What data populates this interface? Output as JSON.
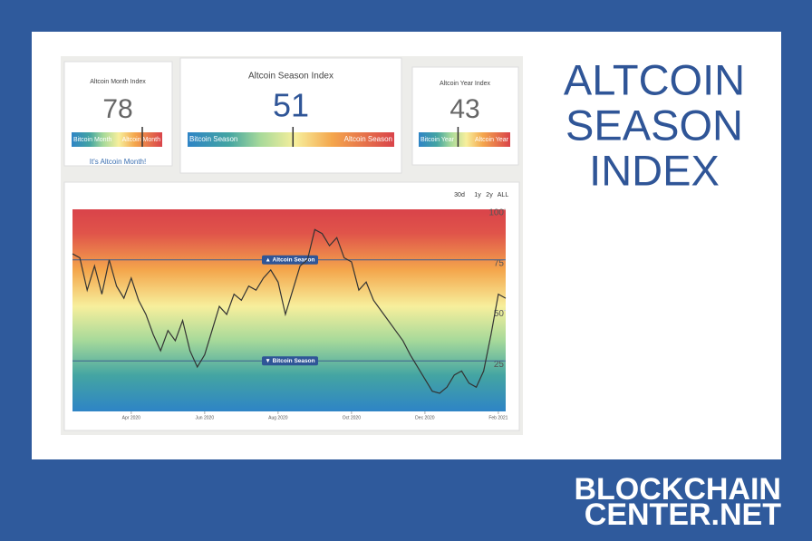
{
  "headline": [
    "ALTCOIN",
    "SEASON",
    "INDEX"
  ],
  "brand": [
    "BLOCKCHAIN",
    "CENTER.NET"
  ],
  "cards": [
    {
      "title": "Altcoin Month Index",
      "value": 78,
      "left": "Bitcoin Month",
      "right": "Altcoin Month",
      "footer": "It's Altcoin Month!"
    },
    {
      "title": "Altcoin Season Index",
      "value": 51,
      "left": "Bitcoin Season",
      "right": "Altcoin Season"
    },
    {
      "title": "Altcoin Year Index",
      "value": 43,
      "left": "Bitcoin Year",
      "right": "Altcoin Year"
    }
  ],
  "range_buttons": [
    "30d",
    "1y",
    "2y",
    "ALL"
  ],
  "chart_data": {
    "type": "line",
    "color": "#333333",
    "values": [
      78,
      76,
      60,
      72,
      58,
      75,
      62,
      56,
      66,
      55,
      48,
      38,
      30,
      40,
      35,
      45,
      30,
      22,
      28,
      40,
      52,
      48,
      58,
      55,
      62,
      60,
      66,
      70,
      64,
      48,
      60,
      72,
      75,
      90,
      88,
      82,
      86,
      76,
      74,
      60,
      64,
      55,
      50,
      45,
      40,
      35,
      28,
      22,
      16,
      10,
      9,
      12,
      18,
      20,
      14,
      12,
      20,
      38,
      58,
      56
    ],
    "xlim": [
      0,
      59
    ],
    "xticks": [
      {
        "value": 8,
        "label": "Apr 2020"
      },
      {
        "value": 18,
        "label": "Jun 2020"
      },
      {
        "value": 28,
        "label": "Aug 2020"
      },
      {
        "value": 38,
        "label": "Oct 2020"
      },
      {
        "value": 48,
        "label": "Dec 2020"
      },
      {
        "value": 58,
        "label": "Feb 2021"
      }
    ],
    "ylim": [
      0,
      100
    ],
    "yticks": [
      25,
      50,
      75,
      100
    ],
    "annotations": [
      {
        "value": 75,
        "label": "▲ Altcoin Season"
      },
      {
        "value": 25,
        "label": "▼ Bitcoin Season"
      }
    ]
  }
}
